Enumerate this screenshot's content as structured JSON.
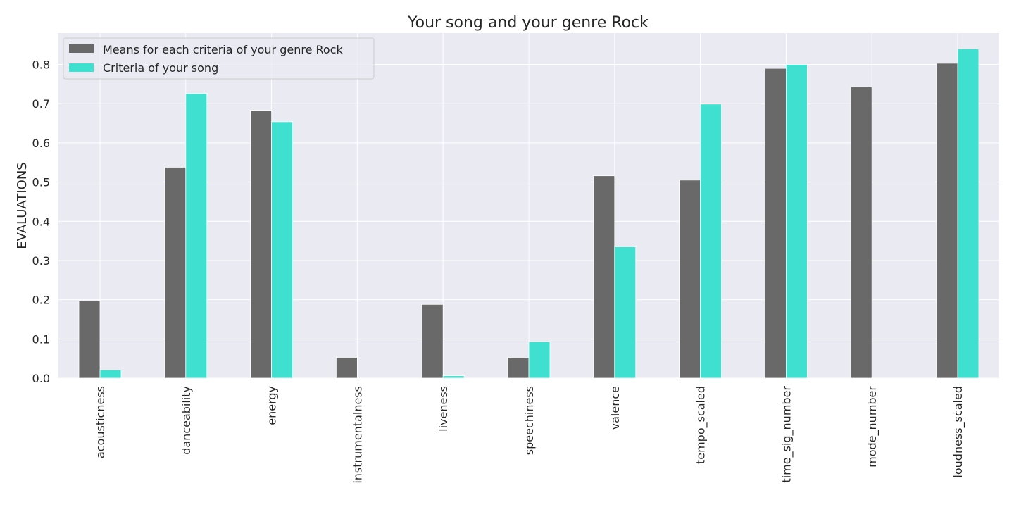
{
  "chart_data": {
    "type": "bar",
    "title": "Your song and your genre Rock",
    "xlabel": "",
    "ylabel": "EVALUATIONS",
    "ylim": [
      0,
      0.88
    ],
    "yticks": [
      0.0,
      0.1,
      0.2,
      0.3,
      0.4,
      0.5,
      0.6,
      0.7,
      0.8
    ],
    "ytick_labels": [
      "0.0",
      "0.1",
      "0.2",
      "0.3",
      "0.4",
      "0.5",
      "0.6",
      "0.7",
      "0.8"
    ],
    "grid": true,
    "legend_position": "top-left",
    "categories": [
      "acousticness",
      "danceability",
      "energy",
      "instrumentalness",
      "liveness",
      "speechiness",
      "valence",
      "tempo_scaled",
      "time_sig_number",
      "mode_number",
      "loudness_scaled"
    ],
    "series": [
      {
        "name": "Means for each criteria of your genre Rock",
        "color": "#696969",
        "values": [
          0.197,
          0.538,
          0.683,
          0.053,
          0.188,
          0.053,
          0.516,
          0.505,
          0.79,
          0.743,
          0.803
        ]
      },
      {
        "name": "Criteria of your song",
        "color": "#40e0d0",
        "values": [
          0.021,
          0.726,
          0.654,
          0.0,
          0.006,
          0.093,
          0.335,
          0.699,
          0.8,
          0.0,
          0.84
        ]
      }
    ]
  }
}
